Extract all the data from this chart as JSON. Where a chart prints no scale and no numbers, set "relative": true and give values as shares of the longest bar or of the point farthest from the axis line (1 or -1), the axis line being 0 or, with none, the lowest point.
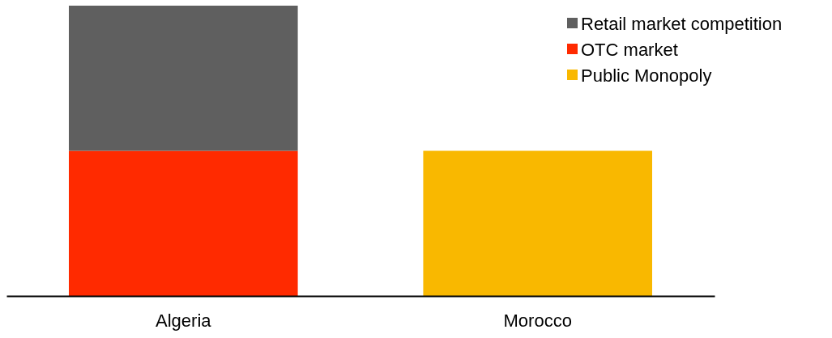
{
  "chart_data": {
    "type": "bar",
    "relative": true,
    "stacked": true,
    "categories": [
      "Algeria",
      "Morocco"
    ],
    "legend": "top right",
    "series": [
      {
        "name": "Public Monopoly",
        "color": "#f9b800",
        "values": [
          null,
          0.5
        ]
      },
      {
        "name": "OTC market",
        "color": "#ff2a00",
        "values": [
          0.5,
          null
        ]
      },
      {
        "name": "Retail market competition",
        "color": "#5f5f5f",
        "values": [
          0.5,
          null
        ]
      }
    ]
  }
}
